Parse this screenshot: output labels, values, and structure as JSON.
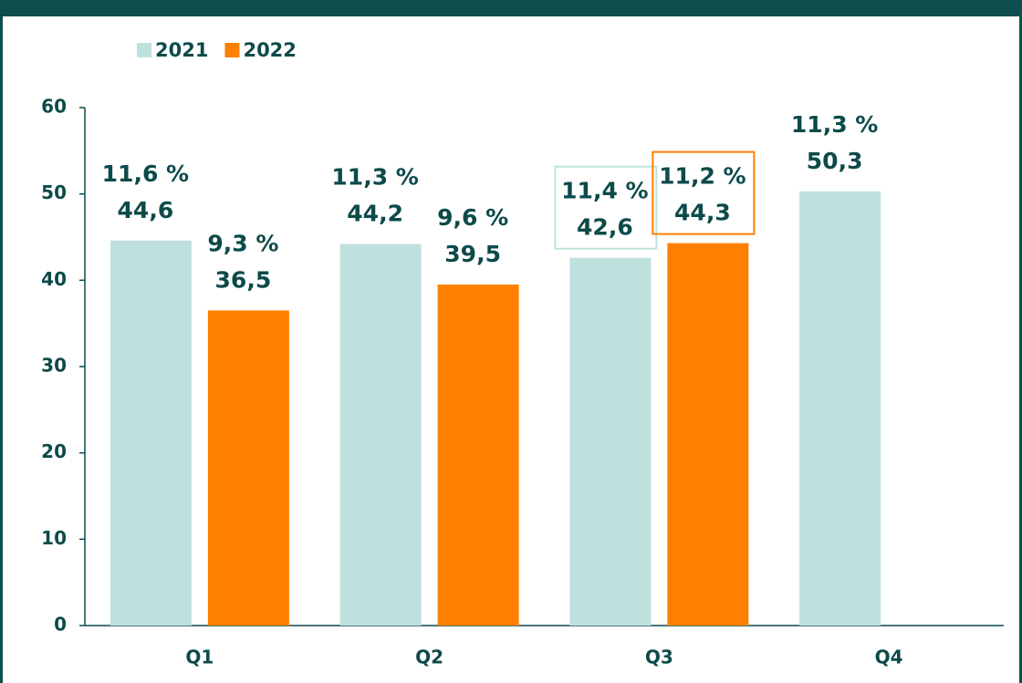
{
  "chart_data": {
    "type": "bar",
    "categories": [
      "Q1",
      "Q2",
      "Q3",
      "Q4"
    ],
    "series": [
      {
        "name": "2021",
        "color": "#bfe1de",
        "values": [
          44.6,
          44.2,
          42.6,
          50.3
        ],
        "value_labels": [
          "44,6",
          "44,2",
          "42,6",
          "50,3"
        ],
        "percent_labels": [
          "11,6 %",
          "11,3 %",
          "11,4 %",
          "11,3 %"
        ]
      },
      {
        "name": "2022",
        "color": "#ff8000",
        "values": [
          36.5,
          39.5,
          44.3,
          null
        ],
        "value_labels": [
          "36,5",
          "39,5",
          "44,3",
          null
        ],
        "percent_labels": [
          "9,3 %",
          "9,6 %",
          "11,2 %",
          null
        ]
      }
    ],
    "highlight": "Q3",
    "ylim": [
      0,
      60
    ],
    "yticks": [
      0,
      10,
      20,
      30,
      40,
      50,
      60
    ],
    "grid": false
  }
}
